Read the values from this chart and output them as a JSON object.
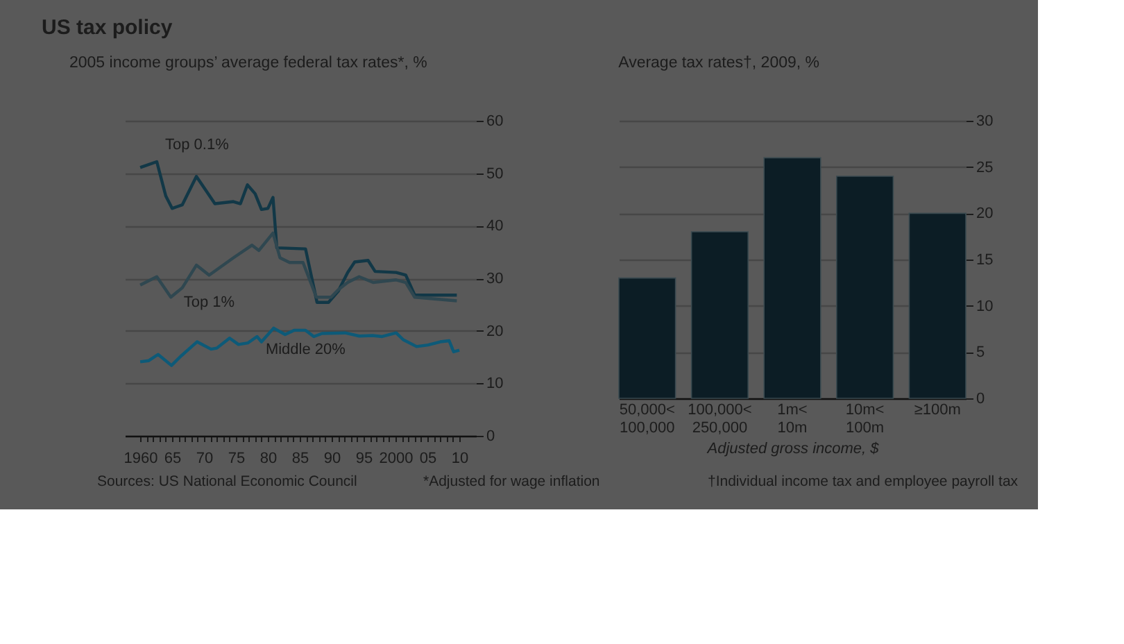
{
  "chart_data": [
    {
      "type": "line",
      "title": "US tax policy",
      "subtitle": "2005 income groups’ average federal tax rates*, %",
      "xlim": [
        1957.6,
        2012.6
      ],
      "ylim": [
        0,
        60
      ],
      "yticks": [
        0,
        10,
        20,
        30,
        40,
        50,
        60
      ],
      "xticks": [
        {
          "value": 1960,
          "label": "1960"
        },
        {
          "value": 1961,
          "label": null
        },
        {
          "value": 1962,
          "label": null
        },
        {
          "value": 1963,
          "label": null
        },
        {
          "value": 1964,
          "label": null
        },
        {
          "value": 1965,
          "label": "65"
        },
        {
          "value": 1966,
          "label": null
        },
        {
          "value": 1967,
          "label": null
        },
        {
          "value": 1968,
          "label": null
        },
        {
          "value": 1969,
          "label": null
        },
        {
          "value": 1970,
          "label": "70"
        },
        {
          "value": 1971,
          "label": null
        },
        {
          "value": 1972,
          "label": null
        },
        {
          "value": 1973,
          "label": null
        },
        {
          "value": 1974,
          "label": null
        },
        {
          "value": 1975,
          "label": "75"
        },
        {
          "value": 1976,
          "label": null
        },
        {
          "value": 1977,
          "label": null
        },
        {
          "value": 1978,
          "label": null
        },
        {
          "value": 1979,
          "label": null
        },
        {
          "value": 1980,
          "label": "80"
        },
        {
          "value": 1981,
          "label": null
        },
        {
          "value": 1982,
          "label": null
        },
        {
          "value": 1983,
          "label": null
        },
        {
          "value": 1984,
          "label": null
        },
        {
          "value": 1985,
          "label": "85"
        },
        {
          "value": 1986,
          "label": null
        },
        {
          "value": 1987,
          "label": null
        },
        {
          "value": 1988,
          "label": null
        },
        {
          "value": 1989,
          "label": null
        },
        {
          "value": 1990,
          "label": "90"
        },
        {
          "value": 1991,
          "label": null
        },
        {
          "value": 1992,
          "label": null
        },
        {
          "value": 1993,
          "label": null
        },
        {
          "value": 1994,
          "label": null
        },
        {
          "value": 1995,
          "label": "95"
        },
        {
          "value": 1996,
          "label": null
        },
        {
          "value": 1997,
          "label": null
        },
        {
          "value": 1998,
          "label": null
        },
        {
          "value": 1999,
          "label": null
        },
        {
          "value": 2000,
          "label": "2000"
        },
        {
          "value": 2001,
          "label": null
        },
        {
          "value": 2002,
          "label": null
        },
        {
          "value": 2003,
          "label": null
        },
        {
          "value": 2004,
          "label": null
        },
        {
          "value": 2005,
          "label": "05"
        },
        {
          "value": 2006,
          "label": null
        },
        {
          "value": 2007,
          "label": null
        },
        {
          "value": 2008,
          "label": null
        },
        {
          "value": 2009,
          "label": null
        },
        {
          "value": 2010,
          "label": "10"
        }
      ],
      "grid": "y",
      "legend": false,
      "marker": "none",
      "line_style": "solid",
      "series": [
        {
          "name": "Top 0.1%",
          "color": "#123847",
          "x": [
            1960,
            1962.6,
            1964,
            1965,
            1966.6,
            1968.8,
            1971.7,
            1974.6,
            1975.7,
            1976.8,
            1978,
            1979,
            1980,
            1980.8,
            1981.4,
            1985.9,
            1987.7,
            1989.5,
            1991,
            1992.5,
            1993.6,
            1995.7,
            1996.8,
            2000.1,
            2001.6,
            2003,
            2009.6
          ],
          "values": [
            51.1,
            52.2,
            45.7,
            43.3,
            44,
            49.4,
            44.2,
            44.6,
            44.2,
            47.8,
            46.1,
            43.1,
            43.3,
            45.4,
            35.8,
            35.6,
            25.4,
            25.4,
            27.5,
            31.1,
            33.1,
            33.4,
            31.3,
            31.1,
            30.6,
            26.8,
            26.8
          ]
        },
        {
          "name": "Top 1%",
          "color": "#2f4750",
          "x": [
            1960,
            1962.6,
            1964.8,
            1966.6,
            1968.8,
            1970.8,
            1974.6,
            1977.5,
            1978.6,
            1980.8,
            1981.9,
            1983.4,
            1985.5,
            1987.6,
            1989.9,
            1991,
            1992.5,
            1994.3,
            1996.5,
            2000.1,
            2001.6,
            2003,
            2009.6
          ],
          "values": [
            28.7,
            30.3,
            26.4,
            28.2,
            32.5,
            30.6,
            33.9,
            36.3,
            35.3,
            38.6,
            33.9,
            33,
            33,
            26.4,
            26.4,
            27.8,
            29.2,
            30.3,
            29.2,
            29.7,
            29.2,
            26.4,
            25.7
          ]
        },
        {
          "name": "Middle 20%",
          "color": "#0d5a78",
          "x": [
            1960,
            1961.3,
            1962.8,
            1964.9,
            1966.4,
            1968.9,
            1971.1,
            1972,
            1974,
            1975.4,
            1976.9,
            1978.3,
            1979,
            1980.9,
            1982.7,
            1984.1,
            1985.9,
            1987.2,
            1988.5,
            1992.1,
            1994.3,
            1996.4,
            1997.9,
            2000.1,
            2001.2,
            2003.3,
            2005.1,
            2007,
            2008.4,
            2009.1,
            2010
          ],
          "values": [
            14.1,
            14.3,
            15.5,
            13.4,
            15.2,
            17.9,
            16.5,
            16.7,
            18.6,
            17.4,
            17.7,
            18.9,
            17.9,
            20.5,
            19.3,
            20.1,
            20.1,
            18.9,
            19.5,
            19.6,
            19,
            19.1,
            18.9,
            19.6,
            18.3,
            17,
            17.3,
            17.9,
            18.1,
            16,
            16.3
          ]
        }
      ],
      "annotations": [
        "Sources: US National Economic Council",
        "*Adjusted for wage inflation"
      ]
    },
    {
      "type": "bar",
      "title": "Average tax rates†, 2009, %",
      "xlabel": "Adjusted gross income, $",
      "categories": [
        "50,000< 100,000",
        "100,000< 250,000",
        "1m< 10m",
        "10m< 100m",
        "≥100m"
      ],
      "values": [
        13,
        18,
        26,
        24,
        20
      ],
      "color": "#0c1d25",
      "ylim": [
        0,
        30
      ],
      "yticks": [
        0,
        5,
        10,
        15,
        20,
        25,
        30
      ],
      "grid": "y",
      "annotations": [
        "†Individual income tax and employee payroll tax"
      ]
    }
  ]
}
